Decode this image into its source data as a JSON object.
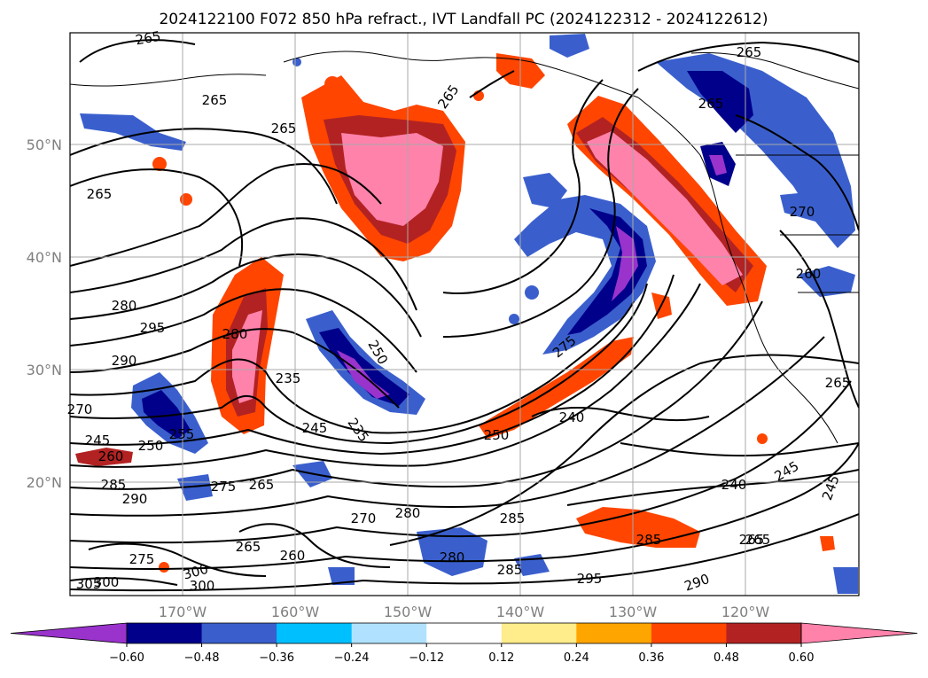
{
  "title": "2024122100 F072 850 hPa refract., IVT Landfall PC (2024122312 - 2024122612)",
  "latitude_labels": [
    "50°N",
    "40°N",
    "30°N",
    "20°N"
  ],
  "longitude_labels": [
    "170°W",
    "160°W",
    "150°W",
    "140°W",
    "130°W",
    "120°W"
  ],
  "colorbar": {
    "colors": [
      "#9933cc",
      "#00008b",
      "#3a5fcd",
      "#00bfff",
      "#b0e2ff",
      "#ffffff",
      "#ffec8b",
      "#ffa500",
      "#ff4500",
      "#b22222",
      "#ff82ab"
    ],
    "tick_labels": [
      "−0.60",
      "−0.48",
      "−0.36",
      "−0.24",
      "−0.12",
      "0.12",
      "0.24",
      "0.36",
      "0.48",
      "0.60"
    ]
  },
  "contour_labels": [
    "265",
    "265",
    "265",
    "265",
    "265",
    "265",
    "265",
    "280",
    "295",
    "290",
    "245",
    "250",
    "260",
    "255",
    "285",
    "290",
    "275",
    "265",
    "270",
    "280",
    "265",
    "260",
    "280",
    "285",
    "285",
    "295",
    "290",
    "265",
    "300",
    "300",
    "300",
    "305",
    "275",
    "270",
    "250",
    "235",
    "245",
    "235",
    "280",
    "275",
    "240",
    "250",
    "285",
    "240",
    "245",
    "245",
    "265",
    "260",
    "270",
    "265"
  ]
}
